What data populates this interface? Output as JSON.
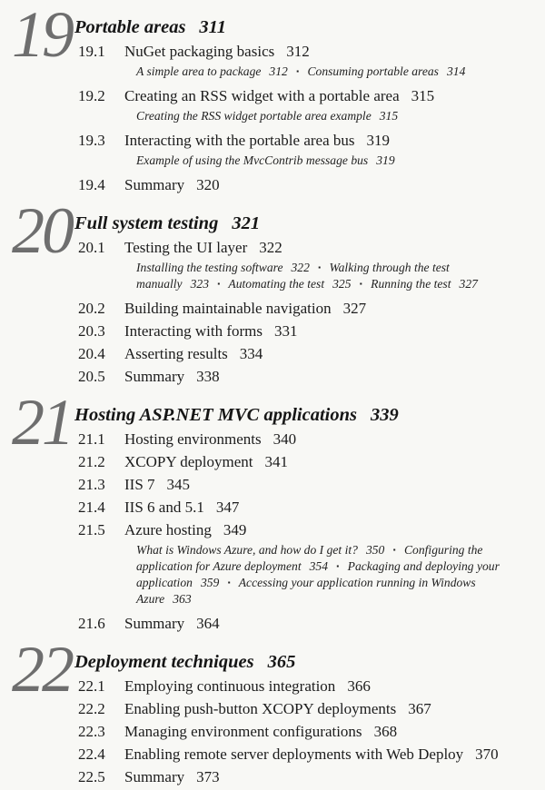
{
  "document": {
    "kind": "book-table-of-contents-page",
    "separator": "▪",
    "colors": {
      "paper": "#f8f8f5",
      "ink": "#1e1e1e",
      "numeral": "#6e6e6e"
    }
  },
  "chapters": [
    {
      "number": "19",
      "title": "Portable areas",
      "page": "311",
      "entries": [
        {
          "type": "section",
          "number": "19.1",
          "title": "NuGet packaging basics",
          "page": "312"
        },
        {
          "type": "subsections",
          "items": [
            {
              "title": "A simple area to package",
              "page": "312"
            },
            {
              "title": "Consuming portable areas",
              "page": "314"
            }
          ]
        },
        {
          "type": "section",
          "number": "19.2",
          "title": "Creating an RSS widget with a portable area",
          "page": "315"
        },
        {
          "type": "subsections",
          "items": [
            {
              "title": "Creating the RSS widget portable area example",
              "page": "315"
            }
          ]
        },
        {
          "type": "section",
          "number": "19.3",
          "title": "Interacting with the portable area bus",
          "page": "319"
        },
        {
          "type": "subsections",
          "items": [
            {
              "title": "Example of using the MvcContrib message bus",
              "page": "319"
            }
          ]
        },
        {
          "type": "section",
          "number": "19.4",
          "title": "Summary",
          "page": "320"
        }
      ]
    },
    {
      "number": "20",
      "title": "Full system testing",
      "page": "321",
      "entries": [
        {
          "type": "section",
          "number": "20.1",
          "title": "Testing the UI layer",
          "page": "322"
        },
        {
          "type": "subsections",
          "items": [
            {
              "title": "Installing the testing software",
              "page": "322"
            },
            {
              "title": "Walking through the test manually",
              "page": "323"
            },
            {
              "title": "Automating the test",
              "page": "325"
            },
            {
              "title": "Running the test",
              "page": "327"
            }
          ]
        },
        {
          "type": "section",
          "number": "20.2",
          "title": "Building maintainable navigation",
          "page": "327"
        },
        {
          "type": "section",
          "number": "20.3",
          "title": "Interacting with forms",
          "page": "331"
        },
        {
          "type": "section",
          "number": "20.4",
          "title": "Asserting results",
          "page": "334"
        },
        {
          "type": "section",
          "number": "20.5",
          "title": "Summary",
          "page": "338"
        }
      ]
    },
    {
      "number": "21",
      "title": "Hosting ASP.NET MVC applications",
      "page": "339",
      "entries": [
        {
          "type": "section",
          "number": "21.1",
          "title": "Hosting environments",
          "page": "340"
        },
        {
          "type": "section",
          "number": "21.2",
          "title": "XCOPY deployment",
          "page": "341"
        },
        {
          "type": "section",
          "number": "21.3",
          "title": "IIS 7",
          "page": "345"
        },
        {
          "type": "section",
          "number": "21.4",
          "title": "IIS 6 and 5.1",
          "page": "347"
        },
        {
          "type": "section",
          "number": "21.5",
          "title": "Azure hosting",
          "page": "349"
        },
        {
          "type": "subsections",
          "items": [
            {
              "title": "What is Windows Azure, and how do I get it?",
              "page": "350"
            },
            {
              "title": "Configuring the application for Azure deployment",
              "page": "354"
            },
            {
              "title": "Packaging and deploying your application",
              "page": "359"
            },
            {
              "title": "Accessing your application running in Windows Azure",
              "page": "363"
            }
          ]
        },
        {
          "type": "section",
          "number": "21.6",
          "title": "Summary",
          "page": "364"
        }
      ]
    },
    {
      "number": "22",
      "title": "Deployment techniques",
      "page": "365",
      "entries": [
        {
          "type": "section",
          "number": "22.1",
          "title": "Employing continuous integration",
          "page": "366"
        },
        {
          "type": "section",
          "number": "22.2",
          "title": "Enabling push-button XCOPY deployments",
          "page": "367"
        },
        {
          "type": "section",
          "number": "22.3",
          "title": "Managing environment configurations",
          "page": "368"
        },
        {
          "type": "section",
          "number": "22.4",
          "title": "Enabling remote server deployments with Web Deploy",
          "page": "370"
        },
        {
          "type": "section",
          "number": "22.5",
          "title": "Summary",
          "page": "373"
        }
      ]
    }
  ]
}
